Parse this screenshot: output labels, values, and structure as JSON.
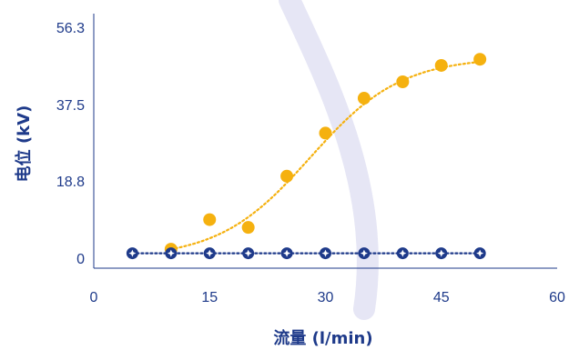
{
  "chart_data": {
    "type": "scatter",
    "xlabel": "流量 (l/min)",
    "ylabel": "电位 (kV)",
    "xlim": [
      0,
      60
    ],
    "ylim": [
      0,
      56.3
    ],
    "x_ticks": [
      "0",
      "15",
      "30",
      "45",
      "60"
    ],
    "y_ticks": [
      "0",
      "18.8",
      "37.5",
      "56.3"
    ],
    "grid": false,
    "legend": "none",
    "series": [
      {
        "x": [
          10,
          15,
          20,
          25,
          30,
          35,
          40,
          45,
          50
        ],
        "y": [
          2.2,
          9.4,
          7.5,
          20.0,
          30.5,
          39.0,
          43.0,
          47.0,
          48.5
        ],
        "color": "#f5b10f",
        "marker": "filled-circle",
        "trend_line": "dotted-smooth"
      },
      {
        "x": [
          5,
          10,
          15,
          20,
          25,
          30,
          35,
          40,
          45,
          50
        ],
        "y": [
          1.2,
          1.2,
          1.2,
          1.2,
          1.2,
          1.2,
          1.2,
          1.2,
          1.2,
          1.2
        ],
        "color": "#1e3a8a",
        "marker": "ring-with-star",
        "trend_line": "dotted"
      }
    ],
    "colors": {
      "axis": "#1e3a8a",
      "background_arc": "#e6e6f5"
    }
  }
}
